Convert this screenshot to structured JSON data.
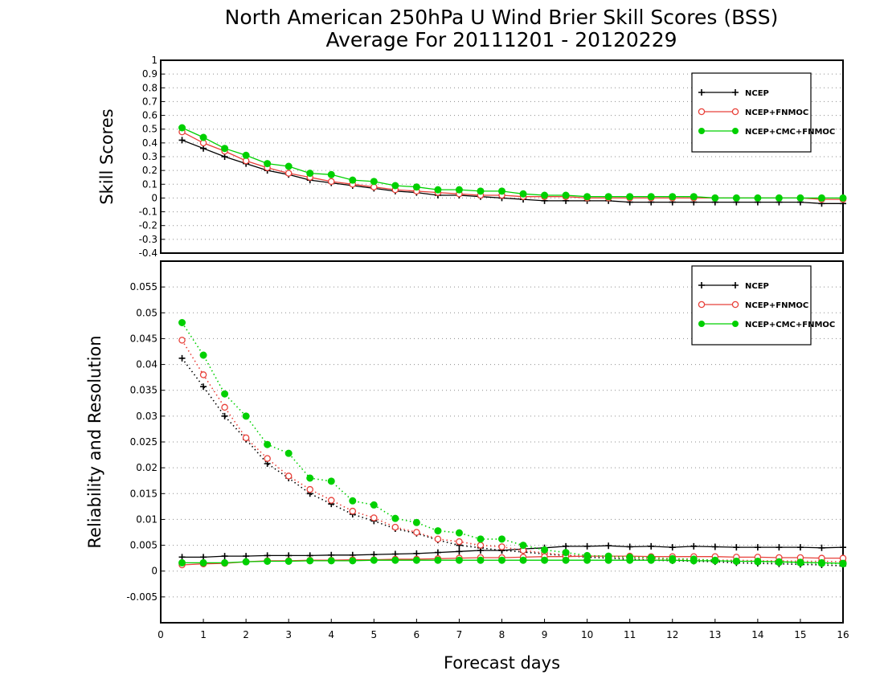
{
  "title_line1": "North American 250hPa U Wind Brier Skill Scores (BSS)",
  "title_line2": "Average For 20111201 - 20120229",
  "colors": {
    "NCEP": "#000000",
    "NCEP+FNMOC": "#e8413a",
    "NCEP+CMC+FNMOC": "#00d000"
  },
  "chart_data": [
    {
      "type": "line",
      "ylabel": "Skill Scores",
      "xlabel": "",
      "ylim": [
        -0.4,
        1
      ],
      "yticks": [
        "-0.4",
        "-0.3",
        "-0.2",
        "-0.1",
        "0",
        "0.1",
        "0.2",
        "0.3",
        "0.4",
        "0.5",
        "0.6",
        "0.7",
        "0.8",
        "0.9",
        "1"
      ],
      "xlim": [
        0,
        16
      ],
      "grid": "horizontal dotted",
      "legend": "top-right",
      "x": [
        0.5,
        1,
        1.5,
        2,
        2.5,
        3,
        3.5,
        4,
        4.5,
        5,
        5.5,
        6,
        6.5,
        7,
        7.5,
        8,
        8.5,
        9,
        9.5,
        10,
        10.5,
        11,
        11.5,
        12,
        12.5,
        13,
        13.5,
        14,
        14.5,
        15,
        15.5,
        16
      ],
      "series": [
        {
          "name": "NCEP",
          "style": "solid",
          "marker": "plus",
          "values": [
            0.42,
            0.36,
            0.3,
            0.25,
            0.2,
            0.17,
            0.13,
            0.11,
            0.09,
            0.07,
            0.05,
            0.04,
            0.02,
            0.02,
            0.01,
            0.0,
            -0.01,
            -0.02,
            -0.02,
            -0.02,
            -0.02,
            -0.03,
            -0.03,
            -0.03,
            -0.03,
            -0.03,
            -0.03,
            -0.03,
            -0.03,
            -0.03,
            -0.04,
            -0.04
          ]
        },
        {
          "name": "NCEP+FNMOC",
          "style": "solid",
          "marker": "open-circle",
          "values": [
            0.48,
            0.4,
            0.34,
            0.27,
            0.22,
            0.18,
            0.15,
            0.12,
            0.1,
            0.08,
            0.06,
            0.05,
            0.04,
            0.03,
            0.02,
            0.02,
            0.01,
            0.01,
            0.01,
            0.0,
            0.0,
            0.0,
            0.0,
            0.0,
            0.0,
            0.0,
            0.0,
            0.0,
            0.0,
            0.0,
            -0.01,
            -0.01
          ]
        },
        {
          "name": "NCEP+CMC+FNMOC",
          "style": "solid",
          "marker": "filled-circle",
          "values": [
            0.51,
            0.44,
            0.36,
            0.31,
            0.25,
            0.23,
            0.18,
            0.17,
            0.13,
            0.12,
            0.09,
            0.08,
            0.06,
            0.06,
            0.05,
            0.05,
            0.03,
            0.02,
            0.02,
            0.01,
            0.01,
            0.01,
            0.01,
            0.01,
            0.01,
            0.0,
            0.0,
            0.0,
            0.0,
            0.0,
            0.0,
            0.0
          ]
        }
      ]
    },
    {
      "type": "line",
      "ylabel": "Reliability and Resolution",
      "xlabel": "Forecast days",
      "ylim": [
        -0.01,
        0.06
      ],
      "yticks": [
        "-0.005",
        "0",
        "0.005",
        "0.01",
        "0.015",
        "0.02",
        "0.025",
        "0.03",
        "0.035",
        "0.04",
        "0.045",
        "0.05",
        "0.055"
      ],
      "xlim": [
        0,
        16
      ],
      "xticks": [
        "0",
        "1",
        "2",
        "3",
        "4",
        "5",
        "6",
        "7",
        "8",
        "9",
        "10",
        "11",
        "12",
        "13",
        "14",
        "15",
        "16"
      ],
      "grid": "horizontal dotted",
      "legend": "top-right",
      "x": [
        0.5,
        1,
        1.5,
        2,
        2.5,
        3,
        3.5,
        4,
        4.5,
        5,
        5.5,
        6,
        6.5,
        7,
        7.5,
        8,
        8.5,
        9,
        9.5,
        10,
        10.5,
        11,
        11.5,
        12,
        12.5,
        13,
        13.5,
        14,
        14.5,
        15,
        15.5,
        16
      ],
      "series": [
        {
          "name": "NCEP",
          "kind": "resolution",
          "style": "dotted",
          "marker": "plus",
          "values": [
            0.0412,
            0.0357,
            0.03,
            0.0255,
            0.0208,
            0.018,
            0.015,
            0.013,
            0.011,
            0.0097,
            0.0082,
            0.0073,
            0.006,
            0.005,
            0.0045,
            0.004,
            0.0037,
            0.0033,
            0.003,
            0.0027,
            0.0025,
            0.0023,
            0.0021,
            0.002,
            0.0019,
            0.0018,
            0.0016,
            0.0015,
            0.0014,
            0.0013,
            0.0012,
            0.001
          ]
        },
        {
          "name": "NCEP",
          "kind": "reliability",
          "style": "solid",
          "marker": "plus",
          "values": [
            0.0027,
            0.0027,
            0.0029,
            0.0029,
            0.003,
            0.003,
            0.003,
            0.0031,
            0.0031,
            0.0032,
            0.0033,
            0.0034,
            0.0036,
            0.0038,
            0.004,
            0.004,
            0.0043,
            0.0045,
            0.0048,
            0.0048,
            0.0049,
            0.0047,
            0.0048,
            0.0046,
            0.0048,
            0.0047,
            0.0046,
            0.0046,
            0.0046,
            0.0046,
            0.0045,
            0.0046
          ]
        },
        {
          "name": "NCEP+FNMOC",
          "kind": "resolution",
          "style": "dotted",
          "marker": "open-circle",
          "values": [
            0.0447,
            0.038,
            0.0317,
            0.0258,
            0.0218,
            0.0184,
            0.0158,
            0.0137,
            0.0116,
            0.0103,
            0.0085,
            0.0075,
            0.0062,
            0.0057,
            0.005,
            0.0047,
            0.004,
            0.0035,
            0.0031,
            0.0029,
            0.0028,
            0.0026,
            0.0024,
            0.0023,
            0.0022,
            0.0021,
            0.0021,
            0.002,
            0.002,
            0.0019,
            0.0019,
            0.0018
          ]
        },
        {
          "name": "NCEP+FNMOC",
          "kind": "reliability",
          "style": "solid",
          "marker": "open-circle",
          "values": [
            0.0012,
            0.0014,
            0.0015,
            0.0018,
            0.002,
            0.002,
            0.0021,
            0.0021,
            0.0022,
            0.0022,
            0.0023,
            0.0023,
            0.0024,
            0.0025,
            0.0026,
            0.0026,
            0.0027,
            0.0028,
            0.0028,
            0.0029,
            0.0029,
            0.0029,
            0.0028,
            0.0028,
            0.0028,
            0.0028,
            0.0027,
            0.0027,
            0.0026,
            0.0026,
            0.0025,
            0.0025
          ]
        },
        {
          "name": "NCEP+CMC+FNMOC",
          "kind": "resolution",
          "style": "dotted",
          "marker": "filled-circle",
          "values": [
            0.0481,
            0.0418,
            0.0343,
            0.03,
            0.0245,
            0.0228,
            0.018,
            0.0174,
            0.0136,
            0.0128,
            0.0102,
            0.0094,
            0.0078,
            0.0074,
            0.0062,
            0.0062,
            0.005,
            0.0041,
            0.0036,
            0.003,
            0.0029,
            0.0027,
            0.0026,
            0.0024,
            0.0023,
            0.0021,
            0.0019,
            0.0018,
            0.0017,
            0.0016,
            0.0015,
            0.0014
          ]
        },
        {
          "name": "NCEP+CMC+FNMOC",
          "kind": "reliability",
          "style": "solid",
          "marker": "filled-circle",
          "values": [
            0.0016,
            0.0016,
            0.0016,
            0.0018,
            0.0019,
            0.0019,
            0.002,
            0.002,
            0.002,
            0.0021,
            0.0021,
            0.0021,
            0.0021,
            0.0021,
            0.0021,
            0.0021,
            0.0021,
            0.0021,
            0.0021,
            0.0021,
            0.0021,
            0.0021,
            0.0021,
            0.0021,
            0.002,
            0.002,
            0.0019,
            0.0019,
            0.0018,
            0.0017,
            0.0016,
            0.0015
          ]
        }
      ]
    }
  ]
}
